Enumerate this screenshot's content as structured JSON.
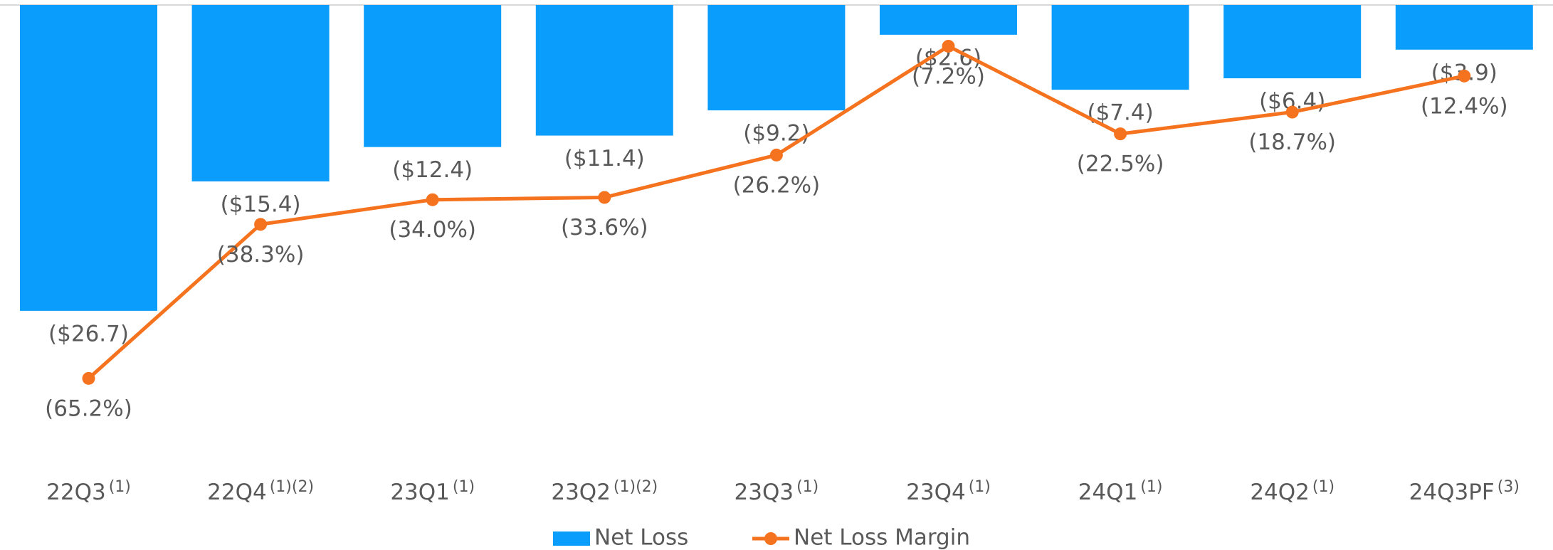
{
  "chart_data": {
    "type": "combo",
    "categories": [
      "22Q3",
      "22Q4",
      "23Q1",
      "23Q2",
      "23Q3",
      "23Q4",
      "24Q1",
      "24Q2",
      "24Q3PF"
    ],
    "footnotes": [
      "(1)",
      "(1)(2)",
      "(1)",
      "(1)(2)",
      "(1)",
      "(1)",
      "(1)",
      "(1)",
      "(3)"
    ],
    "series": [
      {
        "name": "Net Loss",
        "type": "bar",
        "color": "#0b9dfc",
        "values": [
          -26.7,
          -15.4,
          -12.4,
          -11.4,
          -9.2,
          -2.6,
          -7.4,
          -6.4,
          -3.9
        ],
        "value_labels": [
          "($26.7)",
          "($15.4)",
          "($12.4)",
          "($11.4)",
          "($9.2)",
          "($2.6)",
          "($7.4)",
          "($6.4)",
          "($3.9)"
        ]
      },
      {
        "name": "Net Loss Margin",
        "type": "line",
        "axis": "y2",
        "color": "#f5731f",
        "values": [
          -65.2,
          -38.3,
          -34.0,
          -33.6,
          -26.2,
          -7.2,
          -22.5,
          -18.7,
          -12.4
        ],
        "value_labels": [
          "(65.2%)",
          "(38.3%)",
          "(34.0%)",
          "(33.6%)",
          "(26.2%)",
          "(7.2%)",
          "(22.5%)",
          "(18.7%)",
          "(12.4%)"
        ]
      }
    ],
    "ylim": [
      -40,
      0
    ],
    "y2lim": [
      -80,
      0
    ],
    "legend": "bottom"
  }
}
